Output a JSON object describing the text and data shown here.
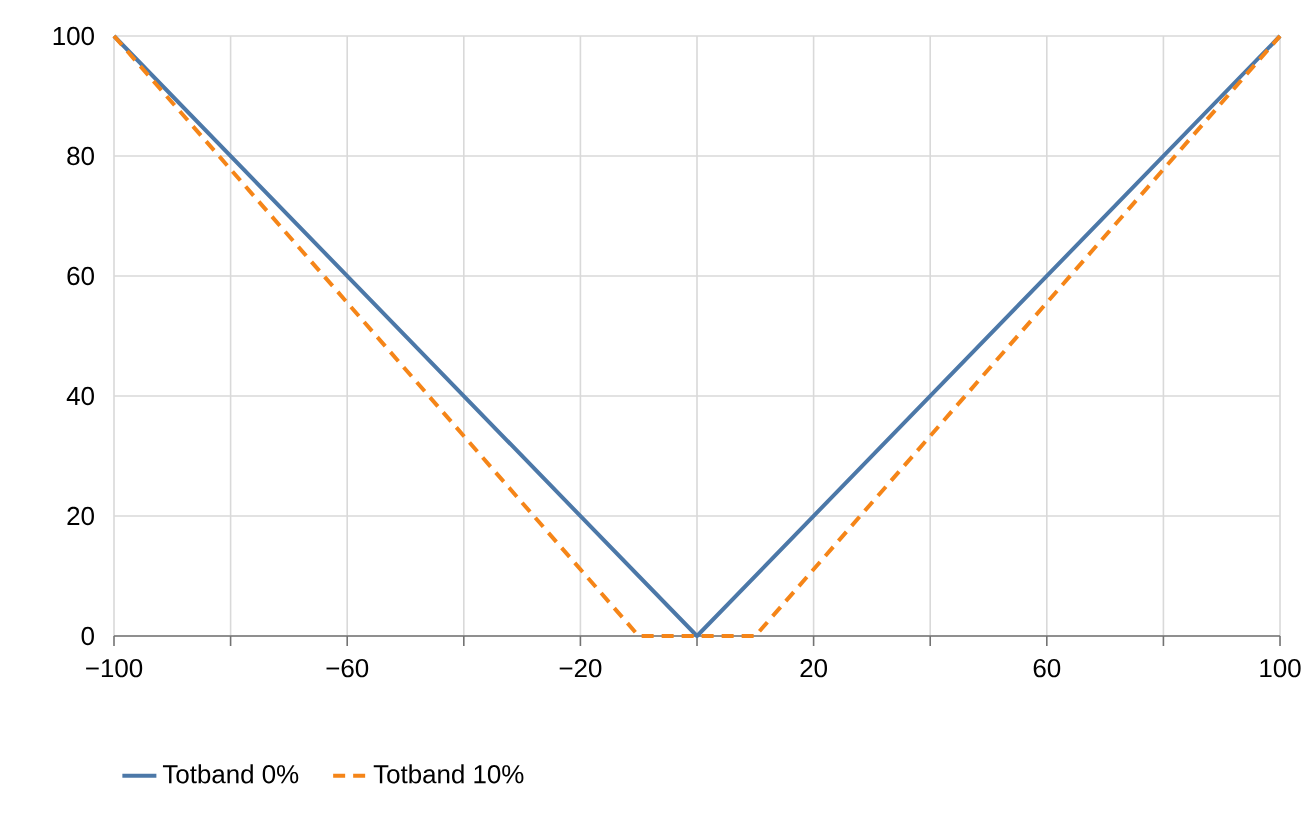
{
  "chart_data": {
    "type": "line",
    "series": [
      {
        "name": "Totband 0%",
        "color": "#4c78a8",
        "line_style": "solid",
        "x": [
          -100,
          0,
          100
        ],
        "values": [
          100,
          0,
          100
        ]
      },
      {
        "name": "Totband 10%",
        "color": "#f58518",
        "line_style": "dashed",
        "x": [
          -100,
          -10,
          10,
          100
        ],
        "values": [
          100,
          0,
          0,
          100
        ]
      }
    ],
    "xlim": [
      -100,
      100
    ],
    "xticks": [
      {
        "value": -100,
        "label": "−100"
      },
      {
        "value": -80,
        "label": null
      },
      {
        "value": -60,
        "label": "−60"
      },
      {
        "value": -40,
        "label": null
      },
      {
        "value": -20,
        "label": "−20"
      },
      {
        "value": 0,
        "label": null
      },
      20,
      {
        "value": 40,
        "label": null
      },
      60,
      {
        "value": 80,
        "label": null
      },
      100
    ],
    "ylim": [
      0,
      100
    ],
    "yticks": [
      0,
      20,
      40,
      60,
      80,
      100
    ],
    "grid": true,
    "legend": "bottom left",
    "marker": "none"
  }
}
